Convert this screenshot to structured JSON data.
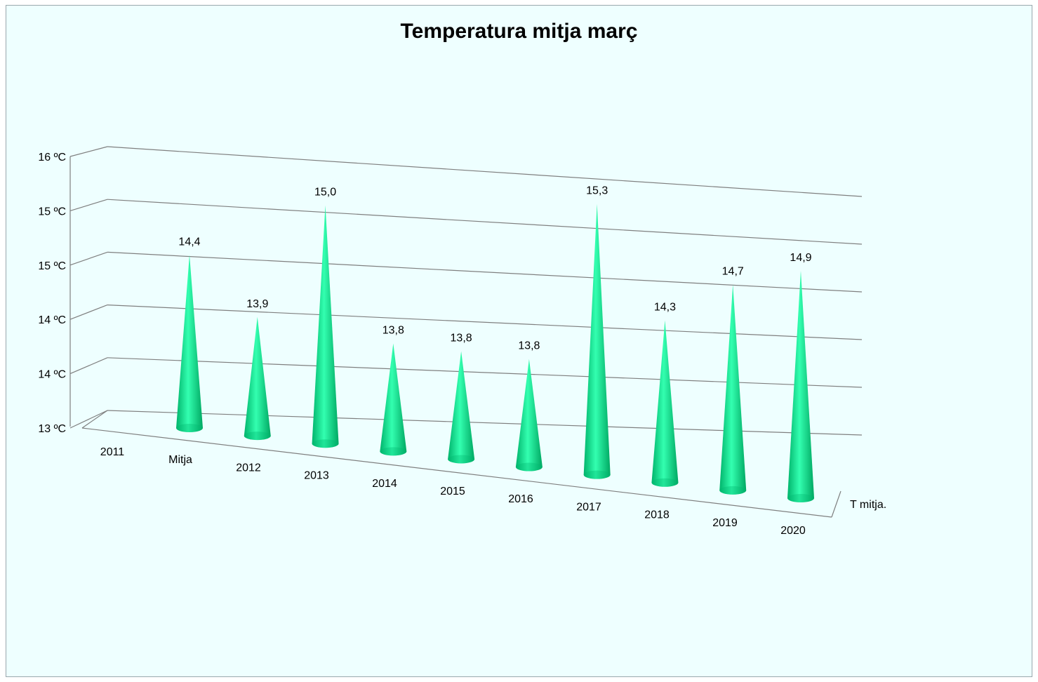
{
  "chart_data": {
    "type": "bar",
    "title": "Temperatura mitja març",
    "categories": [
      "2011",
      "Mitja",
      "2012",
      "2013",
      "2014",
      "2015",
      "2016",
      "2017",
      "2018",
      "2019",
      "2020"
    ],
    "series": [
      {
        "name": "T mitja.",
        "values": [
          null,
          14.4,
          13.9,
          15.0,
          13.8,
          13.8,
          13.8,
          15.3,
          14.3,
          14.7,
          14.9
        ]
      }
    ],
    "data_labels": [
      "",
      "14,4",
      "13,9",
      "15,0",
      "13,8",
      "13,8",
      "13,8",
      "15,3",
      "14,3",
      "14,7",
      "14,9"
    ],
    "y_ticks": [
      13.0,
      13.5,
      14.0,
      14.5,
      15.0,
      15.5
    ],
    "y_tick_labels": [
      "13 ºC",
      "14 ºC",
      "14 ºC",
      "15 ºC",
      "15 ºC",
      "16 ºC"
    ],
    "ylim": [
      13.0,
      15.5
    ],
    "grid": true,
    "legend": "none",
    "colors": {
      "cone": "#00e08a",
      "background": "#eeffff",
      "grid": "#7f7f7f"
    }
  }
}
